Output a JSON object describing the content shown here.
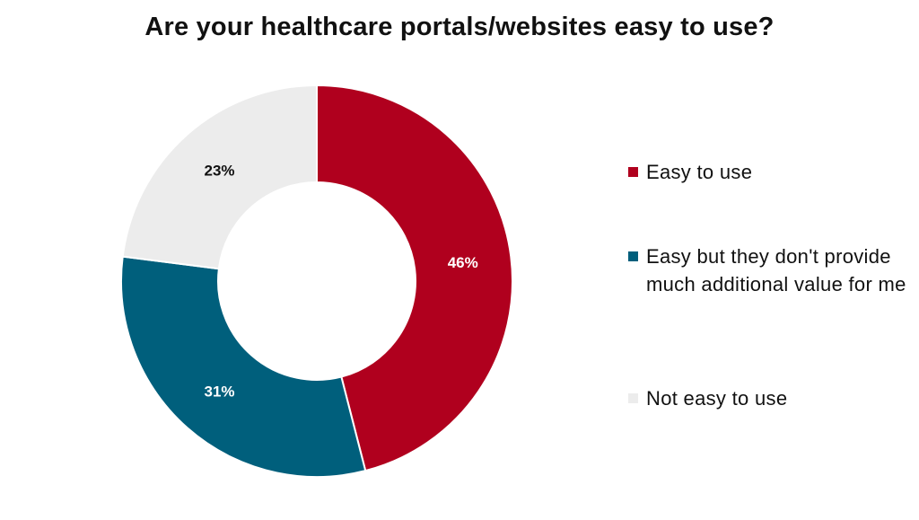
{
  "chart_data": {
    "type": "pie",
    "donut": true,
    "title": "Are your healthcare portals/websites easy to use?",
    "categories": [
      "Easy to use",
      "Easy but they don't provide much additional value for me",
      "Not easy to use"
    ],
    "values": [
      46,
      31,
      23
    ],
    "value_labels": [
      "46%",
      "31%",
      "23%"
    ],
    "colors": [
      "#b0001e",
      "#005f7c",
      "#ececec"
    ],
    "label_colors": [
      "#ffffff",
      "#ffffff",
      "#111111"
    ],
    "legend_placement": "right"
  },
  "legend": {
    "items": [
      {
        "label": "Easy to use",
        "color": "#b0001e"
      },
      {
        "label": "Easy but they don't provide much additional value for me",
        "color": "#005f7c"
      },
      {
        "label": "Not easy to use",
        "color": "#ececec"
      }
    ]
  }
}
